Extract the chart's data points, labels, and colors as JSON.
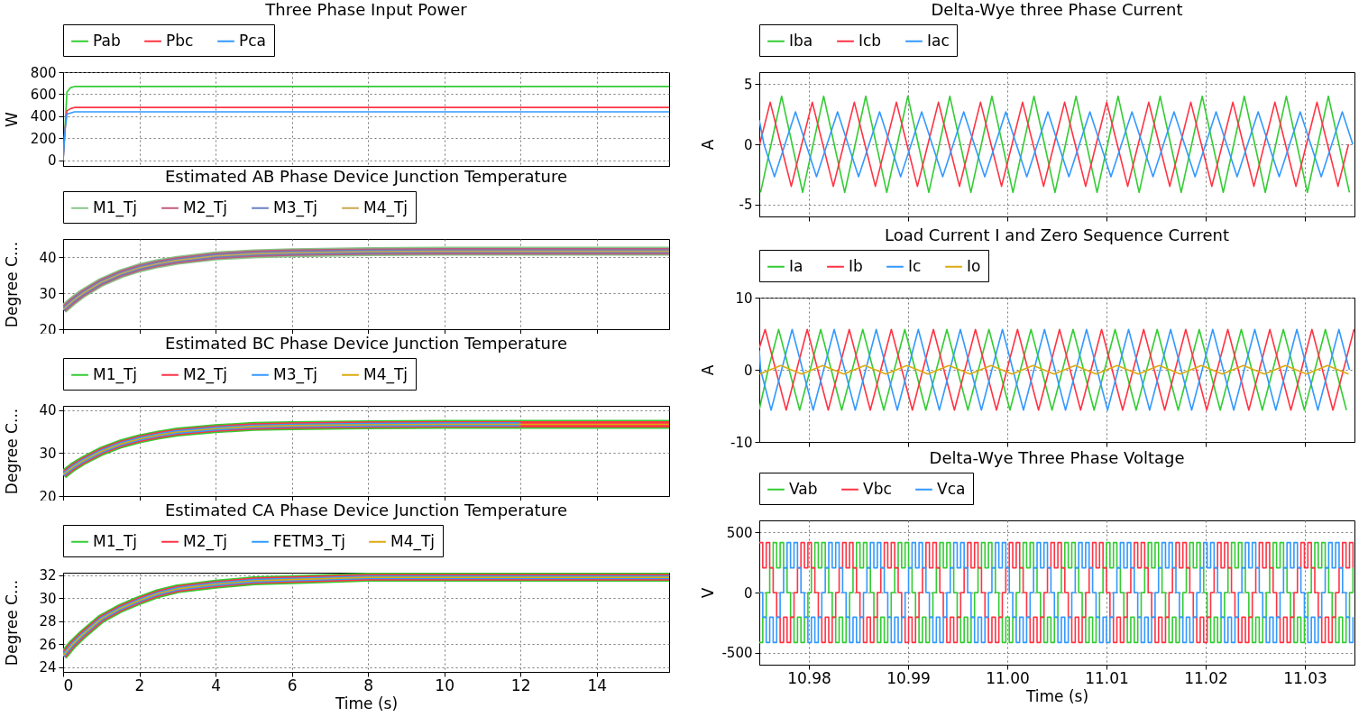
{
  "chart_data": [
    {
      "type": "line",
      "title": "Three Phase Input Power",
      "ylabel": "W",
      "xlim": [
        0,
        15.9
      ],
      "xticks": [
        0,
        2,
        4,
        6,
        8,
        10,
        12,
        14
      ],
      "ylim": [
        -50,
        800
      ],
      "yticks": [
        0,
        200,
        400,
        600,
        800
      ],
      "grid": true,
      "legend": "top",
      "tick_labels": "y",
      "x": [
        0,
        0.05,
        0.1,
        0.2,
        0.3,
        15.9
      ],
      "series": [
        {
          "name": "Pab",
          "color": "#33cc33",
          "values": [
            0,
            300,
            620,
            660,
            670,
            670
          ]
        },
        {
          "name": "Pbc",
          "color": "#ff3344",
          "values": [
            0,
            280,
            450,
            470,
            480,
            480
          ]
        },
        {
          "name": "Pca",
          "color": "#3399ff",
          "values": [
            0,
            270,
            420,
            430,
            440,
            440
          ]
        }
      ]
    },
    {
      "type": "line",
      "title": "Estimated AB Phase Device Junction Temperature",
      "ylabel": "Degree C...",
      "xlim": [
        0,
        15.9
      ],
      "xticks": [
        0,
        2,
        4,
        6,
        8,
        10,
        12,
        14
      ],
      "ylim": [
        20,
        45
      ],
      "yticks": [
        20,
        30,
        40
      ],
      "grid": true,
      "legend": "top",
      "tick_labels": "y",
      "x": [
        0,
        0.25,
        0.5,
        1,
        1.5,
        2,
        2.5,
        3,
        4,
        5,
        6,
        8,
        10,
        12,
        14,
        15.9
      ],
      "series": [
        {
          "name": "M1_Tj",
          "color": "#88c488",
          "values": [
            25.5,
            27.8,
            29.8,
            33.0,
            35.3,
            37.0,
            38.2,
            39.1,
            40.3,
            40.9,
            41.2,
            41.5,
            41.6,
            41.6,
            41.6,
            41.6
          ]
        },
        {
          "name": "M2_Tj",
          "color": "#c05a7a",
          "values": [
            25.5,
            27.8,
            29.8,
            33.0,
            35.3,
            37.0,
            38.2,
            39.1,
            40.3,
            40.9,
            41.2,
            41.5,
            41.6,
            41.6,
            41.6,
            41.6
          ]
        },
        {
          "name": "M3_Tj",
          "color": "#6a7fc0",
          "values": [
            25.5,
            27.8,
            29.8,
            33.0,
            35.3,
            37.0,
            38.2,
            39.1,
            40.3,
            40.9,
            41.2,
            41.5,
            41.6,
            41.6,
            41.6,
            41.6
          ]
        },
        {
          "name": "M4_Tj",
          "color": "#c8a850",
          "values": [
            25.5,
            27.8,
            29.8,
            33.0,
            35.3,
            37.0,
            38.2,
            39.1,
            40.3,
            40.9,
            41.2,
            41.5,
            41.6,
            41.6,
            41.6,
            41.6
          ]
        }
      ]
    },
    {
      "type": "line",
      "title": "Estimated BC Phase Device Junction Temperature",
      "ylabel": "Degree C...",
      "xlim": [
        0,
        15.9
      ],
      "xticks": [
        0,
        2,
        4,
        6,
        8,
        10,
        12,
        14
      ],
      "ylim": [
        20,
        41
      ],
      "yticks": [
        20,
        30,
        40
      ],
      "grid": true,
      "legend": "top",
      "tick_labels": "y",
      "x": [
        0,
        0.25,
        0.5,
        1,
        1.5,
        2,
        2.5,
        3,
        4,
        5,
        6,
        8,
        10,
        12,
        14,
        15.9
      ],
      "series": [
        {
          "name": "M1_Tj",
          "color": "#33cc33",
          "values": [
            25,
            26.7,
            28.1,
            30.4,
            32.1,
            33.3,
            34.2,
            34.9,
            35.7,
            36.2,
            36.4,
            36.6,
            36.7,
            36.7,
            36.7,
            36.7
          ]
        },
        {
          "name": "M2_Tj",
          "color": "#ff3344",
          "values": [
            25,
            26.7,
            28.1,
            30.4,
            32.1,
            33.3,
            34.2,
            34.9,
            35.7,
            36.2,
            36.4,
            36.6,
            36.7,
            36.7,
            36.7,
            36.7
          ]
        },
        {
          "name": "M3_Tj",
          "color": "#3399ff",
          "values": [
            25,
            26.7,
            28.1,
            30.4,
            32.1,
            33.3,
            34.2,
            34.9,
            35.7,
            36.2,
            36.4,
            36.6,
            36.7,
            36.7,
            null,
            null
          ]
        },
        {
          "name": "M4_Tj",
          "color": "#ddaa11",
          "values": [
            25,
            26.7,
            28.1,
            30.4,
            32.1,
            33.3,
            34.2,
            34.9,
            35.7,
            36.2,
            36.4,
            36.6,
            36.7,
            36.7,
            36.7,
            36.7
          ]
        }
      ]
    },
    {
      "type": "line",
      "title": "Estimated CA Phase Device Junction Temperature",
      "xlabel": "Time (s)",
      "ylabel": "Degree C...",
      "xlim": [
        0,
        15.9
      ],
      "xticks": [
        0,
        2,
        4,
        6,
        8,
        10,
        12,
        14
      ],
      "ylim": [
        23.6,
        32.2
      ],
      "yticks": [
        24,
        26,
        28,
        30,
        32
      ],
      "grid": true,
      "legend": "top",
      "x": [
        0,
        0.25,
        0.5,
        1,
        1.5,
        2,
        2.5,
        3,
        4,
        5,
        6,
        8,
        10,
        12,
        14,
        15.9
      ],
      "series": [
        {
          "name": "M1_Tj",
          "color": "#33cc33",
          "values": [
            25,
            26.0,
            26.8,
            28.2,
            29.1,
            29.8,
            30.4,
            30.8,
            31.2,
            31.5,
            31.6,
            31.8,
            31.8,
            31.8,
            31.8,
            31.8
          ]
        },
        {
          "name": "M2_Tj",
          "color": "#ff3344",
          "values": [
            25,
            26.0,
            26.8,
            28.2,
            29.1,
            29.8,
            30.4,
            30.8,
            31.2,
            31.5,
            31.6,
            31.8,
            31.8,
            31.8,
            31.8,
            31.8
          ]
        },
        {
          "name": "FETM3_Tj",
          "color": "#3399ff",
          "values": [
            25,
            26.0,
            26.8,
            28.2,
            29.1,
            29.8,
            30.4,
            30.8,
            31.2,
            31.5,
            31.6,
            31.8,
            31.8,
            31.8,
            31.8,
            31.8
          ]
        },
        {
          "name": "M4_Tj",
          "color": "#ddaa11",
          "values": [
            25,
            26.0,
            26.8,
            28.2,
            29.1,
            29.8,
            30.4,
            30.8,
            31.2,
            31.5,
            31.6,
            31.8,
            31.8,
            31.8,
            31.8,
            31.8
          ]
        }
      ]
    },
    {
      "type": "line",
      "title": "Delta-Wye three Phase Current",
      "ylabel": "A",
      "xlim": [
        10.975,
        11.035
      ],
      "xticks": [
        10.98,
        10.99,
        11,
        11.01,
        11.02,
        11.03
      ],
      "ylim": [
        -6,
        6
      ],
      "yticks": [
        -5,
        0,
        5
      ],
      "grid": true,
      "legend": "top",
      "tick_labels": "y",
      "series": [
        {
          "name": "Iba",
          "color": "#33cc33",
          "x": [
            10.97513,
            10.97619,
            10.97725,
            10.97831,
            10.97937,
            10.98043,
            10.98149,
            10.98255,
            10.98361,
            10.98467,
            10.98573,
            10.98679,
            10.98785,
            10.98891,
            10.98997,
            10.99103,
            10.99209,
            10.99315,
            10.99421,
            10.99527,
            10.99633,
            10.99739,
            10.99845,
            10.99951,
            11.00057,
            11.00163,
            11.00269,
            11.00375,
            11.00481,
            11.00587,
            11.00693,
            11.00799,
            11.00905,
            11.01011,
            11.01117,
            11.01223,
            11.01329,
            11.01435,
            11.01541,
            11.01647,
            11.01753,
            11.01859,
            11.01965,
            11.02071,
            11.02177,
            11.02283,
            11.02389,
            11.02495,
            11.02601,
            11.02707,
            11.02813,
            11.02919,
            11.03025,
            11.03131,
            11.03237,
            11.03343,
            11.03449
          ],
          "values": [
            -4,
            0,
            4,
            0,
            -4,
            0,
            4,
            0,
            -4,
            0,
            4,
            0,
            -4,
            0,
            4,
            0,
            -4,
            0,
            4,
            0,
            -4,
            0,
            4,
            0,
            -4,
            0,
            4,
            0,
            -4,
            0,
            4,
            0,
            -4,
            0,
            4,
            0,
            -4,
            0,
            4,
            0,
            -4,
            0,
            4,
            0,
            -4,
            0,
            4,
            0,
            -4,
            0,
            4,
            0,
            -4,
            0,
            4,
            0,
            -4
          ]
        },
        {
          "name": "Icb",
          "color": "#ff3344",
          "x": [
            10.97504,
            10.9761,
            10.97716,
            10.97822,
            10.97928,
            10.98034,
            10.9814,
            10.98246,
            10.98352,
            10.98458,
            10.98564,
            10.9867,
            10.98776,
            10.98882,
            10.98988,
            10.99094,
            10.992,
            10.99306,
            10.99412,
            10.99518,
            10.99624,
            10.9973,
            10.99836,
            10.99942,
            11.00048,
            11.00154,
            11.0026,
            11.00366,
            11.00472,
            11.00578,
            11.00684,
            11.0079,
            11.00896,
            11.01002,
            11.01108,
            11.01214,
            11.0132,
            11.01426,
            11.01532,
            11.01638,
            11.01744,
            11.0185,
            11.01956,
            11.02062,
            11.02168,
            11.02274,
            11.0238,
            11.02486,
            11.02592,
            11.02698,
            11.02804,
            11.0291,
            11.03016,
            11.03122,
            11.03228,
            11.03334,
            11.0344
          ],
          "values": [
            0,
            3.5,
            0,
            -3.5,
            0,
            3.5,
            0,
            -3.5,
            0,
            3.5,
            0,
            -3.5,
            0,
            3.5,
            0,
            -3.5,
            0,
            3.5,
            0,
            -3.5,
            0,
            3.5,
            0,
            -3.5,
            0,
            3.5,
            0,
            -3.5,
            0,
            3.5,
            0,
            -3.5,
            0,
            3.5,
            0,
            -3.5,
            0,
            3.5,
            0,
            -3.5,
            0,
            3.5,
            0,
            -3.5,
            0,
            3.5,
            0,
            -3.5,
            0,
            3.5,
            0,
            -3.5,
            0,
            3.5,
            0,
            -3.5,
            0
          ]
        },
        {
          "name": "Iac",
          "color": "#3399ff",
          "x": [
            10.975,
            10.97547,
            10.97653,
            10.97759,
            10.97865,
            10.97971,
            10.98077,
            10.98183,
            10.98289,
            10.98395,
            10.98501,
            10.98607,
            10.98713,
            10.98819,
            10.98925,
            10.99031,
            10.99137,
            10.99243,
            10.99349,
            10.99455,
            10.99561,
            10.99667,
            10.99773,
            10.99879,
            10.99985,
            11.00091,
            11.00197,
            11.00303,
            11.00409,
            11.00515,
            11.00621,
            11.00727,
            11.00833,
            11.00939,
            11.01045,
            11.01151,
            11.01257,
            11.01363,
            11.01469,
            11.01575,
            11.01681,
            11.01787,
            11.01893,
            11.01999,
            11.02105,
            11.02211,
            11.02317,
            11.02423,
            11.02529,
            11.02635,
            11.02741,
            11.02847,
            11.02953,
            11.03059,
            11.03165,
            11.03271,
            11.03377,
            11.03483
          ],
          "values": [
            2,
            0,
            -2.7,
            0,
            2.7,
            0,
            -2.7,
            0,
            2.7,
            0,
            -2.7,
            0,
            2.7,
            0,
            -2.7,
            0,
            2.7,
            0,
            -2.7,
            0,
            2.7,
            0,
            -2.7,
            0,
            2.7,
            0,
            -2.7,
            0,
            2.7,
            0,
            -2.7,
            0,
            2.7,
            0,
            -2.7,
            0,
            2.7,
            0,
            -2.7,
            0,
            2.7,
            0,
            -2.7,
            0,
            2.7,
            0,
            -2.7,
            0,
            2.7,
            0,
            -2.7,
            0,
            2.7,
            0,
            -2.7,
            0,
            2.7,
            0
          ]
        }
      ]
    },
    {
      "type": "line",
      "title": "Load Current I and Zero Sequence Current",
      "ylabel": "A",
      "xlim": [
        10.975,
        11.035
      ],
      "xticks": [
        10.98,
        10.99,
        11,
        11.01,
        11.02,
        11.03
      ],
      "ylim": [
        -10,
        10
      ],
      "yticks": [
        -10,
        0,
        10
      ],
      "grid": true,
      "legend": "top",
      "tick_labels": "y",
      "series": [
        {
          "name": "Ia",
          "color": "#33cc33",
          "x": [
            10.975,
            10.97589,
            10.97695,
            10.97801,
            10.97907,
            10.98013,
            10.98119,
            10.98225,
            10.98331,
            10.98437,
            10.98543,
            10.98649,
            10.98755,
            10.98861,
            10.98967,
            10.99073,
            10.99179,
            10.99285,
            10.99391,
            10.99497,
            10.99603,
            10.99709,
            10.99815,
            10.99921,
            11.00027,
            11.00133,
            11.00239,
            11.00345,
            11.00451,
            11.00557,
            11.00663,
            11.00769,
            11.00875,
            11.00981,
            11.01087,
            11.01193,
            11.01299,
            11.01405,
            11.01511,
            11.01617,
            11.01723,
            11.01829,
            11.01935,
            11.02041,
            11.02147,
            11.02253,
            11.02359,
            11.02465,
            11.02571,
            11.02677,
            11.02783,
            11.02889,
            11.02995,
            11.03101,
            11.03207,
            11.03313,
            11.03419
          ],
          "values": [
            -5.5,
            0,
            5.6,
            0,
            -5.6,
            0,
            5.6,
            0,
            -5.6,
            0,
            5.6,
            0,
            -5.6,
            0,
            5.6,
            0,
            -5.6,
            0,
            5.6,
            0,
            -5.6,
            0,
            5.6,
            0,
            -5.6,
            0,
            5.6,
            0,
            -5.6,
            0,
            5.6,
            0,
            -5.6,
            0,
            5.6,
            0,
            -5.6,
            0,
            5.6,
            0,
            -5.6,
            0,
            5.6,
            0,
            -5.6,
            0,
            5.6,
            0,
            -5.6,
            0,
            5.6,
            0,
            -5.6,
            0,
            5.6,
            0,
            -5.6
          ]
        },
        {
          "name": "Ib",
          "color": "#ff3344",
          "x": [
            10.975,
            10.97559,
            10.97665,
            10.97771,
            10.97877,
            10.97983,
            10.98089,
            10.98195,
            10.98301,
            10.98407,
            10.98513,
            10.98619,
            10.98725,
            10.98831,
            10.98937,
            10.99043,
            10.99149,
            10.99255,
            10.99361,
            10.99467,
            10.99573,
            10.99679,
            10.99785,
            10.99891,
            10.99997,
            11.00103,
            11.00209,
            11.00315,
            11.00421,
            11.00527,
            11.00633,
            11.00739,
            11.00845,
            11.00951,
            11.01057,
            11.01163,
            11.01269,
            11.01375,
            11.01481,
            11.01587,
            11.01693,
            11.01799,
            11.01905,
            11.02011,
            11.02117,
            11.02223,
            11.02329,
            11.02435,
            11.02541,
            11.02647,
            11.02753,
            11.02859,
            11.02965,
            11.03071,
            11.03177,
            11.03283,
            11.03389,
            11.03495
          ],
          "values": [
            3,
            5.6,
            0,
            -5.6,
            0,
            5.6,
            0,
            -5.6,
            0,
            5.6,
            0,
            -5.6,
            0,
            5.6,
            0,
            -5.6,
            0,
            5.6,
            0,
            -5.6,
            0,
            5.6,
            0,
            -5.6,
            0,
            5.6,
            0,
            -5.6,
            0,
            5.6,
            0,
            -5.6,
            0,
            5.6,
            0,
            -5.6,
            0,
            5.6,
            0,
            -5.6,
            0,
            5.6,
            0,
            -5.6,
            0,
            5.6,
            0,
            -5.6,
            0,
            5.6,
            0,
            -5.6,
            0,
            5.6,
            0,
            -5.6,
            0,
            5.6
          ]
        },
        {
          "name": "Ic",
          "color": "#3399ff",
          "x": [
            10.975,
            10.97513,
            10.97619,
            10.97725,
            10.97831,
            10.97937,
            10.98043,
            10.98149,
            10.98255,
            10.98361,
            10.98467,
            10.98573,
            10.98679,
            10.98785,
            10.98891,
            10.98997,
            10.99103,
            10.99209,
            10.99315,
            10.99421,
            10.99527,
            10.99633,
            10.99739,
            10.99845,
            10.99951,
            11.00057,
            11.00163,
            11.00269,
            11.00375,
            11.00481,
            11.00587,
            11.00693,
            11.00799,
            11.00905,
            11.01011,
            11.01117,
            11.01223,
            11.01329,
            11.01435,
            11.01541,
            11.01647,
            11.01753,
            11.01859,
            11.01965,
            11.02071,
            11.02177,
            11.02283,
            11.02389,
            11.02495,
            11.02601,
            11.02707,
            11.02813,
            11.02919,
            11.03025,
            11.03131,
            11.03237,
            11.03343,
            11.03449
          ],
          "values": [
            2.7,
            0,
            -5.6,
            0,
            5.6,
            0,
            -5.6,
            0,
            5.6,
            0,
            -5.6,
            0,
            5.6,
            0,
            -5.6,
            0,
            5.6,
            0,
            -5.6,
            0,
            5.6,
            0,
            -5.6,
            0,
            5.6,
            0,
            -5.6,
            0,
            5.6,
            0,
            -5.6,
            0,
            5.6,
            0,
            -5.6,
            0,
            5.6,
            0,
            -5.6,
            0,
            5.6,
            0,
            -5.6,
            0,
            5.6,
            0,
            -5.6,
            0,
            5.6,
            0,
            -5.6,
            0,
            5.6,
            0,
            -5.6,
            0,
            5.6,
            0
          ]
        },
        {
          "name": "Io",
          "color": "#ddaa11",
          "x": [
            10.97504,
            10.9761,
            10.97716,
            10.97822,
            10.97928,
            10.98034,
            10.9814,
            10.98246,
            10.98352,
            10.98458,
            10.98564,
            10.9867,
            10.98776,
            10.98882,
            10.98988,
            10.99094,
            10.992,
            10.99306,
            10.99412,
            10.99518,
            10.99624,
            10.9973,
            10.99836,
            10.99942,
            11.00048,
            11.00154,
            11.0026,
            11.00366,
            11.00472,
            11.00578,
            11.00684,
            11.0079,
            11.00896,
            11.01002,
            11.01108,
            11.01214,
            11.0132,
            11.01426,
            11.01532,
            11.01638,
            11.01744,
            11.0185,
            11.01956,
            11.02062,
            11.02168,
            11.02274,
            11.0238,
            11.02486,
            11.02592,
            11.02698,
            11.02804,
            11.0291,
            11.03016,
            11.03122,
            11.03228,
            11.03334,
            11.0344
          ],
          "values": [
            -0.6,
            0,
            0.6,
            0,
            -0.6,
            0,
            0.6,
            0,
            -0.6,
            0,
            0.6,
            0,
            -0.6,
            0,
            0.6,
            0,
            -0.6,
            0,
            0.6,
            0,
            -0.6,
            0,
            0.6,
            0,
            -0.6,
            0,
            0.6,
            0,
            -0.6,
            0,
            0.6,
            0,
            -0.6,
            0,
            0.6,
            0,
            -0.6,
            0,
            0.6,
            0,
            -0.6,
            0,
            0.6,
            0,
            -0.6,
            0,
            0.6,
            0,
            -0.6,
            0,
            0.6,
            0,
            -0.6,
            0,
            0.6,
            0,
            -0.6
          ]
        }
      ]
    },
    {
      "type": "step",
      "title": "Delta-Wye Three Phase Voltage",
      "xlabel": "Time (s)",
      "ylabel": "V",
      "xlim": [
        10.975,
        11.035
      ],
      "xticks": [
        10.98,
        10.99,
        {
          "value": 11,
          "label": "11.00"
        },
        11.01,
        11.02,
        11.03
      ],
      "ylim": [
        -600,
        600
      ],
      "yticks": [
        -500,
        0,
        500
      ],
      "grid": true,
      "legend": "top",
      "x": [
        10.975,
        10.97535,
        10.9757,
        10.97605,
        10.9764,
        10.97675,
        10.9771,
        10.97745,
        10.9778,
        10.97815,
        10.9785,
        10.97885,
        10.9792,
        10.97955,
        10.9799,
        10.98025,
        10.9806,
        10.98095,
        10.9813,
        10.98165,
        10.982,
        10.98235,
        10.9827,
        10.98305,
        10.9834,
        10.98375,
        10.9841,
        10.98445,
        10.9848,
        10.98515,
        10.9855,
        10.98585,
        10.9862,
        10.98655,
        10.9869,
        10.98725,
        10.9876,
        10.98795,
        10.9883,
        10.98865,
        10.989,
        10.98935,
        10.9897,
        10.99005,
        10.9904,
        10.99075,
        10.9911,
        10.99145,
        10.9918,
        10.99215,
        10.9925,
        10.99285,
        10.9932,
        10.99355,
        10.9939,
        10.99425,
        10.9946,
        10.99495,
        10.9953,
        10.99565,
        10.996,
        10.99635,
        10.9967,
        10.99705,
        10.9974,
        10.99775,
        10.9981,
        10.99845,
        10.9988,
        10.99915,
        10.9995,
        10.99985,
        11.0002,
        11.00055,
        11.0009,
        11.00125,
        11.0016,
        11.00195,
        11.0023,
        11.00265,
        11.003,
        11.00335,
        11.0037,
        11.00405,
        11.0044,
        11.00475,
        11.0051,
        11.00545,
        11.0058,
        11.00615,
        11.0065,
        11.00685,
        11.0072,
        11.00755,
        11.0079,
        11.00825,
        11.0086,
        11.00895,
        11.0093,
        11.00965,
        11.01,
        11.01035,
        11.0107,
        11.01105,
        11.0114,
        11.01175,
        11.0121,
        11.01245,
        11.0128,
        11.01315,
        11.0135,
        11.01385,
        11.0142,
        11.01455,
        11.0149,
        11.01525,
        11.0156,
        11.01595,
        11.0163,
        11.01665,
        11.017,
        11.01735,
        11.0177,
        11.01805,
        11.0184,
        11.01875,
        11.0191,
        11.01945,
        11.0198,
        11.02015,
        11.0205,
        11.02085,
        11.0212,
        11.02155,
        11.0219,
        11.02225,
        11.0226,
        11.02295,
        11.0233,
        11.02365,
        11.024,
        11.02435,
        11.0247,
        11.02505,
        11.0254,
        11.02575,
        11.0261,
        11.02645,
        11.0268,
        11.02715,
        11.0275,
        11.02785,
        11.0282,
        11.02855,
        11.0289,
        11.02925,
        11.0296,
        11.02995,
        11.0303,
        11.03065,
        11.031,
        11.03135,
        11.0317,
        11.03205,
        11.0324,
        11.03275,
        11.0331,
        11.03345,
        11.0338,
        11.03415,
        11.0345,
        11.03485
      ],
      "series": [
        {
          "name": "Vab",
          "color": "#33cc33",
          "values": [
            -415,
            -205,
            0,
            205,
            415,
            205,
            415,
            205,
            0,
            -205,
            -415,
            -205,
            -415,
            -205,
            0,
            205,
            415,
            205,
            415,
            205,
            0,
            -205,
            -415,
            -205,
            -415,
            -205,
            0,
            205,
            415,
            205,
            415,
            205,
            0,
            -205,
            -415,
            -205,
            -415,
            -205,
            0,
            205,
            415,
            205,
            415,
            205,
            0,
            -205,
            -415,
            -205,
            -415,
            -205,
            0,
            205,
            415,
            205,
            415,
            205,
            0,
            -205,
            -415,
            -205,
            -415,
            -205,
            0,
            205,
            415,
            205,
            415,
            205,
            0,
            -205,
            -415,
            -205,
            -415,
            -205,
            0,
            205,
            415,
            205,
            415,
            205,
            0,
            -205,
            -415,
            -205,
            -415,
            -205,
            0,
            205,
            415,
            205,
            415,
            205,
            0,
            -205,
            -415,
            -205,
            -415,
            -205,
            0,
            205,
            415,
            205,
            415,
            205,
            0,
            -205,
            -415,
            -205,
            -415,
            -205,
            0,
            205,
            415,
            205,
            415,
            205,
            0,
            -205,
            -415,
            -205,
            -415,
            -205,
            0,
            205,
            415,
            205,
            415,
            205,
            0,
            -205,
            -415,
            -205,
            -415,
            -205,
            0,
            205,
            415,
            205,
            415,
            205,
            0,
            -205,
            -415,
            -205,
            -415,
            -205,
            0,
            205,
            415,
            205,
            415,
            205,
            0,
            -205,
            -415,
            -205,
            -415,
            -205,
            0,
            205,
            415,
            205,
            415,
            205,
            0,
            -205,
            -415,
            -205,
            -415,
            -205,
            0,
            205
          ]
        },
        {
          "name": "Vbc",
          "color": "#ff3344",
          "values": [
            415,
            205,
            415,
            205,
            0,
            -205,
            -415,
            -205,
            -415,
            -205,
            0,
            205,
            415,
            205,
            415,
            205,
            0,
            -205,
            -415,
            -205,
            -415,
            -205,
            0,
            205,
            415,
            205,
            415,
            205,
            0,
            -205,
            -415,
            -205,
            -415,
            -205,
            0,
            205,
            415,
            205,
            415,
            205,
            0,
            -205,
            -415,
            -205,
            -415,
            -205,
            0,
            205,
            415,
            205,
            415,
            205,
            0,
            -205,
            -415,
            -205,
            -415,
            -205,
            0,
            205,
            415,
            205,
            415,
            205,
            0,
            -205,
            -415,
            -205,
            -415,
            -205,
            0,
            205,
            415,
            205,
            415,
            205,
            0,
            -205,
            -415,
            -205,
            -415,
            -205,
            0,
            205,
            415,
            205,
            415,
            205,
            0,
            -205,
            -415,
            -205,
            -415,
            -205,
            0,
            205,
            415,
            205,
            415,
            205,
            0,
            -205,
            -415,
            -205,
            -415,
            -205,
            0,
            205,
            415,
            205,
            415,
            205,
            0,
            -205,
            -415,
            -205,
            -415,
            -205,
            0,
            205,
            415,
            205,
            415,
            205,
            0,
            -205,
            -415,
            -205,
            -415,
            -205,
            0,
            205,
            415,
            205,
            415,
            205,
            0,
            -205,
            -415,
            -205,
            -415,
            -205,
            0,
            205,
            415,
            205,
            415,
            205,
            0,
            -205,
            -415,
            -205,
            -415,
            -205,
            0,
            205,
            415,
            205,
            415,
            205,
            0,
            -205,
            -415,
            -205,
            -415,
            -205,
            0,
            205,
            415,
            205,
            415,
            205
          ]
        },
        {
          "name": "Vca",
          "color": "#3399ff",
          "values": [
            0,
            -205,
            -415,
            -205,
            -415,
            -205,
            0,
            205,
            415,
            205,
            415,
            205,
            0,
            -205,
            -415,
            -205,
            -415,
            -205,
            0,
            205,
            415,
            205,
            415,
            205,
            0,
            -205,
            -415,
            -205,
            -415,
            -205,
            0,
            205,
            415,
            205,
            415,
            205,
            0,
            -205,
            -415,
            -205,
            -415,
            -205,
            0,
            205,
            415,
            205,
            415,
            205,
            0,
            -205,
            -415,
            -205,
            -415,
            -205,
            0,
            205,
            415,
            205,
            415,
            205,
            0,
            -205,
            -415,
            -205,
            -415,
            -205,
            0,
            205,
            415,
            205,
            415,
            205,
            0,
            -205,
            -415,
            -205,
            -415,
            -205,
            0,
            205,
            415,
            205,
            415,
            205,
            0,
            -205,
            -415,
            -205,
            -415,
            -205,
            0,
            205,
            415,
            205,
            415,
            205,
            0,
            -205,
            -415,
            -205,
            -415,
            -205,
            0,
            205,
            415,
            205,
            415,
            205,
            0,
            -205,
            -415,
            -205,
            -415,
            -205,
            0,
            205,
            415,
            205,
            415,
            205,
            0,
            -205,
            -415,
            -205,
            -415,
            -205,
            0,
            205,
            415,
            205,
            415,
            205,
            0,
            -205,
            -415,
            -205,
            -415,
            -205,
            0,
            205,
            415,
            205,
            415,
            205,
            0,
            -205,
            -415,
            -205,
            -415,
            -205,
            0,
            205,
            415,
            205,
            415,
            205,
            0,
            -205,
            -415,
            -205,
            -415,
            -205,
            0,
            205,
            415,
            205,
            415,
            205,
            0,
            -205,
            -415,
            -205
          ]
        }
      ]
    }
  ]
}
